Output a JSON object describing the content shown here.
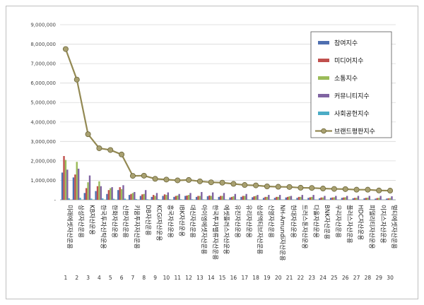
{
  "chart_data": {
    "type": "bar",
    "title": "",
    "xlabel": "",
    "ylabel": "",
    "ylim": [
      0,
      9000000
    ],
    "y_ticks": [
      "9,000,000",
      "8,000,000",
      "7,000,000",
      "6,000,000",
      "5,000,000",
      "4,000,000",
      "3,000,000",
      "2,000,000",
      "1,000,000",
      "-"
    ],
    "grid": true,
    "legend_position": "right",
    "indices": [
      "1",
      "2",
      "3",
      "4",
      "5",
      "6",
      "7",
      "8",
      "9",
      "10",
      "11",
      "12",
      "13",
      "14",
      "15",
      "16",
      "17",
      "18",
      "19",
      "20",
      "21",
      "22",
      "23",
      "24",
      "25",
      "26",
      "27",
      "28",
      "29",
      "30"
    ],
    "categories": [
      "미래에셋자산운용",
      "삼성자산운용",
      "KB자산운용",
      "한국투자신탁운용",
      "한화자산운용",
      "신한자산운용",
      "키움투자자산운용",
      "DB자산운용",
      "KCGI자산운용",
      "흥국자산운용",
      "IBK자산운용",
      "대신자산운용",
      "아이엠에셋자산운용",
      "한국투자밸류자산운용",
      "에셋플러스자산운용",
      "유진자산운용",
      "유리자산운용",
      "삼성액티브자산운용",
      "신영자산운용",
      "NH-Amundi자산운용",
      "현대자산운용",
      "트러스톤자산운용",
      "다올자산운용",
      "BNK자산운용",
      "우리자산운용",
      "플러스자산운용",
      "HDC자산운용",
      "피델리티자산운용",
      "이지스자산운용",
      "멀티에셋자산운용"
    ],
    "series": [
      {
        "name": "참여지수",
        "color": "#4F6FB0",
        "type": "bar",
        "values": [
          1400000,
          1150000,
          350000,
          450000,
          300000,
          500000,
          250000,
          200000,
          150000,
          200000,
          150000,
          200000,
          150000,
          180000,
          150000,
          120000,
          150000,
          130000,
          100000,
          100000,
          120000,
          100000,
          100000,
          80000,
          100000,
          100000,
          80000,
          80000,
          60000,
          60000
        ]
      },
      {
        "name": "미디어지수",
        "color": "#C0504D",
        "type": "bar",
        "values": [
          2250000,
          1300000,
          600000,
          700000,
          500000,
          650000,
          300000,
          280000,
          250000,
          280000,
          200000,
          220000,
          200000,
          220000,
          200000,
          150000,
          200000,
          180000,
          150000,
          150000,
          150000,
          150000,
          130000,
          120000,
          120000,
          120000,
          100000,
          100000,
          90000,
          80000
        ]
      },
      {
        "name": "소통지수",
        "color": "#9BBB59",
        "type": "bar",
        "values": [
          2050000,
          1950000,
          900000,
          950000,
          600000,
          550000,
          350000,
          300000,
          200000,
          250000,
          220000,
          250000,
          200000,
          200000,
          200000,
          180000,
          200000,
          200000,
          150000,
          150000,
          180000,
          150000,
          150000,
          120000,
          130000,
          130000,
          100000,
          110000,
          100000,
          90000
        ]
      },
      {
        "name": "커뮤니티지수",
        "color": "#8064A2",
        "type": "bar",
        "values": [
          1550000,
          1600000,
          1250000,
          700000,
          650000,
          750000,
          400000,
          500000,
          350000,
          380000,
          300000,
          350000,
          400000,
          380000,
          350000,
          300000,
          300000,
          250000,
          250000,
          250000,
          200000,
          250000,
          250000,
          200000,
          200000,
          200000,
          200000,
          200000,
          200000,
          180000
        ]
      },
      {
        "name": "사회공헌지수",
        "color": "#4BACC6",
        "type": "bar",
        "values": [
          80000,
          100000,
          60000,
          70000,
          50000,
          60000,
          40000,
          30000,
          30000,
          30000,
          30000,
          30000,
          25000,
          25000,
          25000,
          20000,
          20000,
          20000,
          20000,
          20000,
          20000,
          20000,
          20000,
          15000,
          15000,
          15000,
          15000,
          15000,
          15000,
          10000
        ]
      },
      {
        "name": "브랜드평판지수",
        "color": "#938953",
        "type": "line",
        "values": [
          7750000,
          6180000,
          3370000,
          2650000,
          2560000,
          2330000,
          1230000,
          1240000,
          1080000,
          1040000,
          1000000,
          1020000,
          950000,
          900000,
          880000,
          820000,
          760000,
          740000,
          690000,
          670000,
          660000,
          620000,
          610000,
          580000,
          560000,
          550000,
          520000,
          520000,
          480000,
          470000
        ]
      }
    ]
  }
}
